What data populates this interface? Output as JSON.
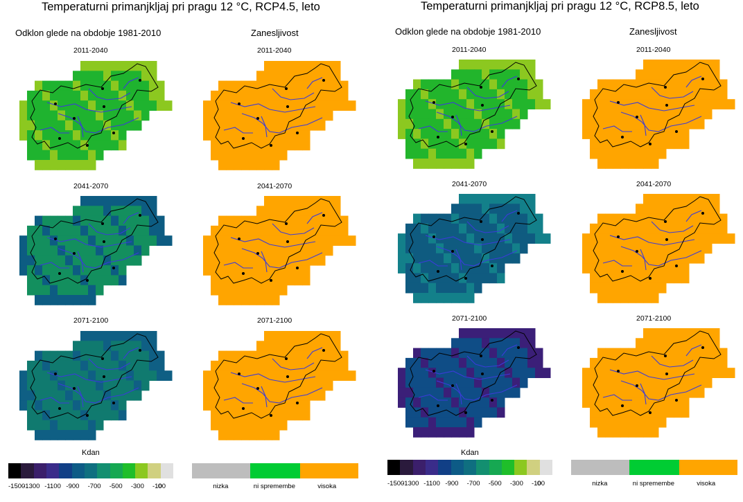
{
  "panels": [
    {
      "title": "Temperaturni primanjkljaj pri pragu 12 °C, RCP4.5, leto",
      "deviation_header": "Odklon glede na obdobje 1981-2010",
      "reliability_header": "Zanesljivost",
      "periods": [
        "2011-2040",
        "2041-2070",
        "2071-2100"
      ],
      "deviation_fill": [
        "#1fb32f",
        "#138f5e",
        "#107a6f"
      ],
      "deviation_accent": [
        "#8cc820",
        "#0d5c82",
        "#0f5f84"
      ]
    },
    {
      "title": "Temperaturni primanjkljaj pri pragu 12 °C, RCP8.5, leto",
      "deviation_header": "Odklon glede na obdobje 1981-2010",
      "reliability_header": "Zanesljivost",
      "periods": [
        "2011-2040",
        "2041-2070",
        "2071-2100"
      ],
      "deviation_fill": [
        "#22b52c",
        "#0f5b80",
        "#0f4d86"
      ],
      "deviation_accent": [
        "#8cc820",
        "#13808a",
        "#3b1f78"
      ]
    }
  ],
  "reliability_color": "#ffa500",
  "deviation_legend": {
    "unit_label": "Kdan",
    "colors": [
      "#000000",
      "#2a1a3c",
      "#3b1f6b",
      "#3a2c8a",
      "#113f86",
      "#0d5b86",
      "#0f6f80",
      "#138f70",
      "#16a852",
      "#1fbe2a",
      "#8cc820",
      "#d0d080",
      "#e0e0e0"
    ],
    "tick_labels": [
      "-1500",
      "-1300",
      "-1100",
      "-900",
      "-700",
      "-500",
      "-300",
      "-100",
      "0"
    ]
  },
  "reliability_legend": {
    "categories": [
      {
        "label": "nizka",
        "color": "#bdbdbd"
      },
      {
        "label": "ni spremembe",
        "color": "#00cc33"
      },
      {
        "label": "visoka",
        "color": "#ffa500"
      }
    ]
  }
}
